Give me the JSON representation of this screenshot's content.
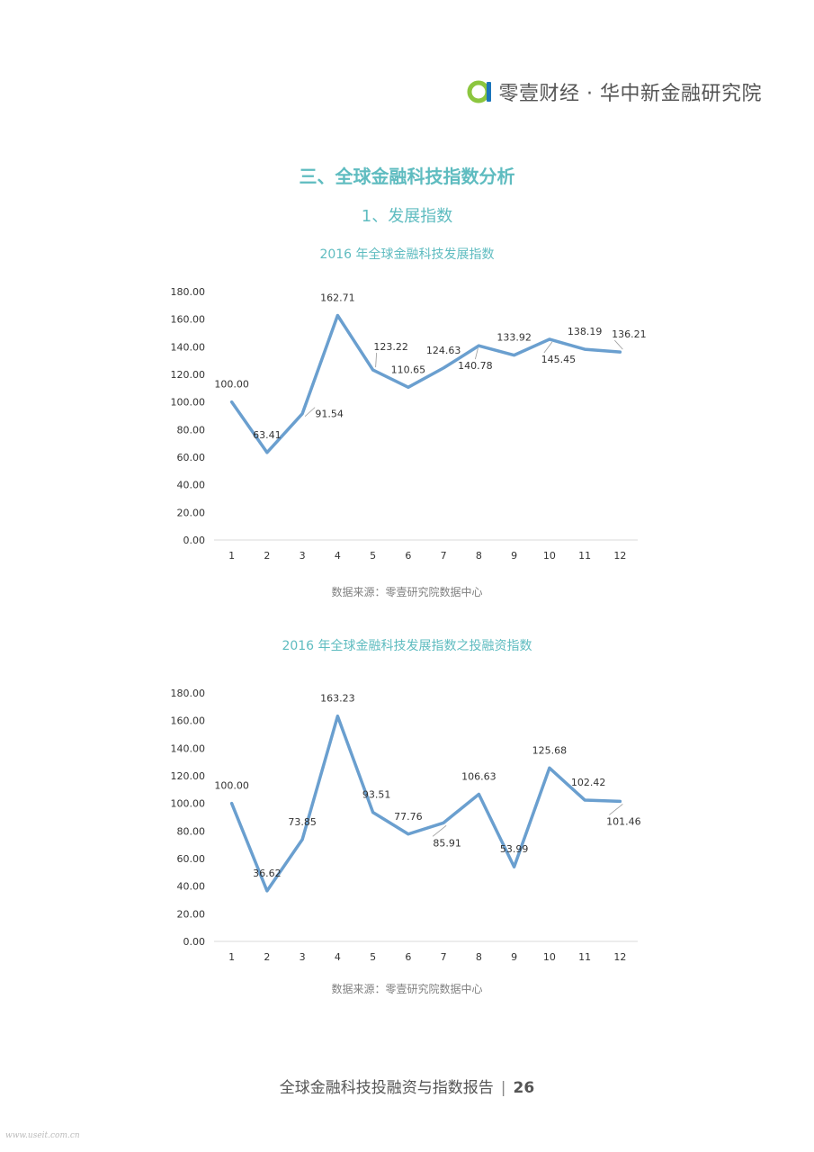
{
  "header": {
    "title": "零壹财经 · 华中新金融研究院"
  },
  "section_title": "三、全球金融科技指数分析",
  "subsection_title": "1、发展指数",
  "footer": {
    "text": "全球金融科技投融资与指数报告",
    "page": "26"
  },
  "watermark": "www.useit.com.cn",
  "colors": {
    "accent": "#5fbcc0",
    "line": "#6a9fcf",
    "logo_green": "#8cc63f",
    "logo_blue": "#1b75bb"
  },
  "chart_data": [
    {
      "type": "line",
      "title": "2016 年全球金融科技发展指数",
      "source": "数据来源：零壹研究院数据中心",
      "categories": [
        "1",
        "2",
        "3",
        "4",
        "5",
        "6",
        "7",
        "8",
        "9",
        "10",
        "11",
        "12"
      ],
      "values": [
        100.0,
        63.41,
        91.54,
        162.71,
        123.22,
        110.65,
        124.63,
        140.78,
        133.92,
        145.45,
        138.19,
        136.21
      ],
      "labels": [
        "100.00",
        "63.41",
        "91.54",
        "162.71",
        "123.22",
        "110.65",
        "124.63",
        "140.78",
        "133.92",
        "145.45",
        "138.19",
        "136.21"
      ],
      "yticks": [
        "0.00",
        "20.00",
        "40.00",
        "60.00",
        "80.00",
        "100.00",
        "120.00",
        "140.00",
        "160.00",
        "180.00"
      ],
      "ylim": [
        0,
        180
      ],
      "grid": false,
      "legend": "none"
    },
    {
      "type": "line",
      "title": "2016 年全球金融科技发展指数之投融资指数",
      "source": "数据来源：零壹研究院数据中心",
      "categories": [
        "1",
        "2",
        "3",
        "4",
        "5",
        "6",
        "7",
        "8",
        "9",
        "10",
        "11",
        "12"
      ],
      "values": [
        100.0,
        36.62,
        73.85,
        163.23,
        93.51,
        77.76,
        85.91,
        106.63,
        53.99,
        125.68,
        102.42,
        101.46
      ],
      "labels": [
        "100.00",
        "36.62",
        "73.85",
        "163.23",
        "93.51",
        "77.76",
        "85.91",
        "106.63",
        "53.99",
        "125.68",
        "102.42",
        "101.46"
      ],
      "yticks": [
        "0.00",
        "20.00",
        "40.00",
        "60.00",
        "80.00",
        "100.00",
        "120.00",
        "140.00",
        "160.00",
        "180.00"
      ],
      "ylim": [
        0,
        180
      ],
      "grid": false,
      "legend": "none"
    }
  ]
}
